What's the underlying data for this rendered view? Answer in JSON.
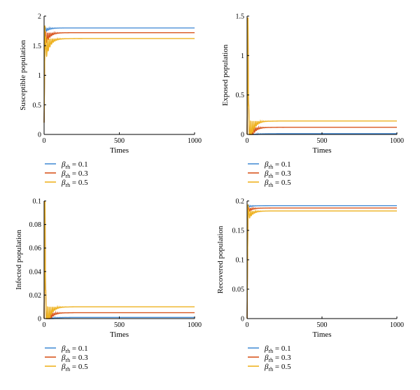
{
  "colors": {
    "beta_0_1": "#4a8fd6",
    "beta_0_3": "#d9561f",
    "beta_0_5": "#eeb221"
  },
  "legend": [
    {
      "sym": "β",
      "sub": "rh",
      "text": " = 0.1",
      "color": "#4a8fd6"
    },
    {
      "sym": "β",
      "sub": "rh",
      "text": " = 0.3",
      "color": "#d9561f"
    },
    {
      "sym": "β",
      "sub": "rh",
      "text": " = 0.5",
      "color": "#eeb221"
    }
  ],
  "chart_data": [
    {
      "type": "line",
      "ylabel": "Susceptible population",
      "xlabel": "Times",
      "xlim": [
        0,
        1000
      ],
      "ylim": [
        0,
        2
      ],
      "xticks": [
        0,
        500,
        1000
      ],
      "yticks": [
        0,
        0.5,
        1,
        1.5,
        2
      ],
      "ytick_labels": [
        "0",
        "0.5",
        "1",
        "1.5",
        "2"
      ],
      "start": 0.2,
      "series": [
        {
          "name": "βrh = 0.1",
          "color": "#4a8fd6",
          "steady": 1.8,
          "peak": 1.84,
          "osc_amp": 0.08
        },
        {
          "name": "βrh = 0.3",
          "color": "#d9561f",
          "steady": 1.72,
          "peak": 1.84,
          "osc_amp": 0.25
        },
        {
          "name": "βrh = 0.5",
          "color": "#eeb221",
          "steady": 1.62,
          "peak": 1.84,
          "osc_amp": 0.45
        }
      ]
    },
    {
      "type": "line",
      "ylabel": "Exposed population",
      "xlabel": "Times",
      "xlim": [
        0,
        1000
      ],
      "ylim": [
        0,
        1.5
      ],
      "xticks": [
        0,
        500,
        1000
      ],
      "yticks": [
        0,
        0.5,
        1,
        1.5
      ],
      "ytick_labels": [
        "0",
        "0.5",
        "1",
        "1.5"
      ],
      "start": 0.0,
      "series": [
        {
          "name": "βrh = 0.1",
          "color": "#4a8fd6",
          "steady": 0.01,
          "peak": 1.48,
          "osc_amp": 0.15
        },
        {
          "name": "βrh = 0.3",
          "color": "#d9561f",
          "steady": 0.09,
          "peak": 1.48,
          "osc_amp": 0.3
        },
        {
          "name": "βrh = 0.5",
          "color": "#eeb221",
          "steady": 0.17,
          "peak": 1.48,
          "osc_amp": 0.45
        }
      ]
    },
    {
      "type": "line",
      "ylabel": "Infected population",
      "xlabel": "Times",
      "xlim": [
        0,
        1000
      ],
      "ylim": [
        0,
        0.1
      ],
      "xticks": [
        0,
        500,
        1000
      ],
      "yticks": [
        0,
        0.02,
        0.04,
        0.06,
        0.08,
        0.1
      ],
      "ytick_labels": [
        "0",
        "0.02",
        "0.04",
        "0.06",
        "0.08",
        "0.1"
      ],
      "start": 0.0,
      "series": [
        {
          "name": "βrh = 0.1",
          "color": "#4a8fd6",
          "steady": 0.001,
          "peak": 0.1,
          "osc_amp": 0.01
        },
        {
          "name": "βrh = 0.3",
          "color": "#d9561f",
          "steady": 0.005,
          "peak": 0.1,
          "osc_amp": 0.02
        },
        {
          "name": "βrh = 0.5",
          "color": "#eeb221",
          "steady": 0.01,
          "peak": 0.1,
          "osc_amp": 0.03
        }
      ]
    },
    {
      "type": "line",
      "ylabel": "Recovered population",
      "xlabel": "Times",
      "xlim": [
        0,
        1000
      ],
      "ylim": [
        0,
        0.2
      ],
      "xticks": [
        0,
        500,
        1000
      ],
      "yticks": [
        0,
        0.05,
        0.1,
        0.15,
        0.2
      ],
      "ytick_labels": [
        "0",
        "0.05",
        "0.1",
        "0.15",
        "0.2"
      ],
      "start": 0.0,
      "series": [
        {
          "name": "βrh = 0.1",
          "color": "#4a8fd6",
          "steady": 0.192,
          "peak": 0.194,
          "osc_amp": 0.003
        },
        {
          "name": "βrh = 0.3",
          "color": "#d9561f",
          "steady": 0.188,
          "peak": 0.194,
          "osc_amp": 0.008
        },
        {
          "name": "βrh = 0.5",
          "color": "#eeb221",
          "steady": 0.183,
          "peak": 0.194,
          "osc_amp": 0.018
        }
      ]
    }
  ]
}
